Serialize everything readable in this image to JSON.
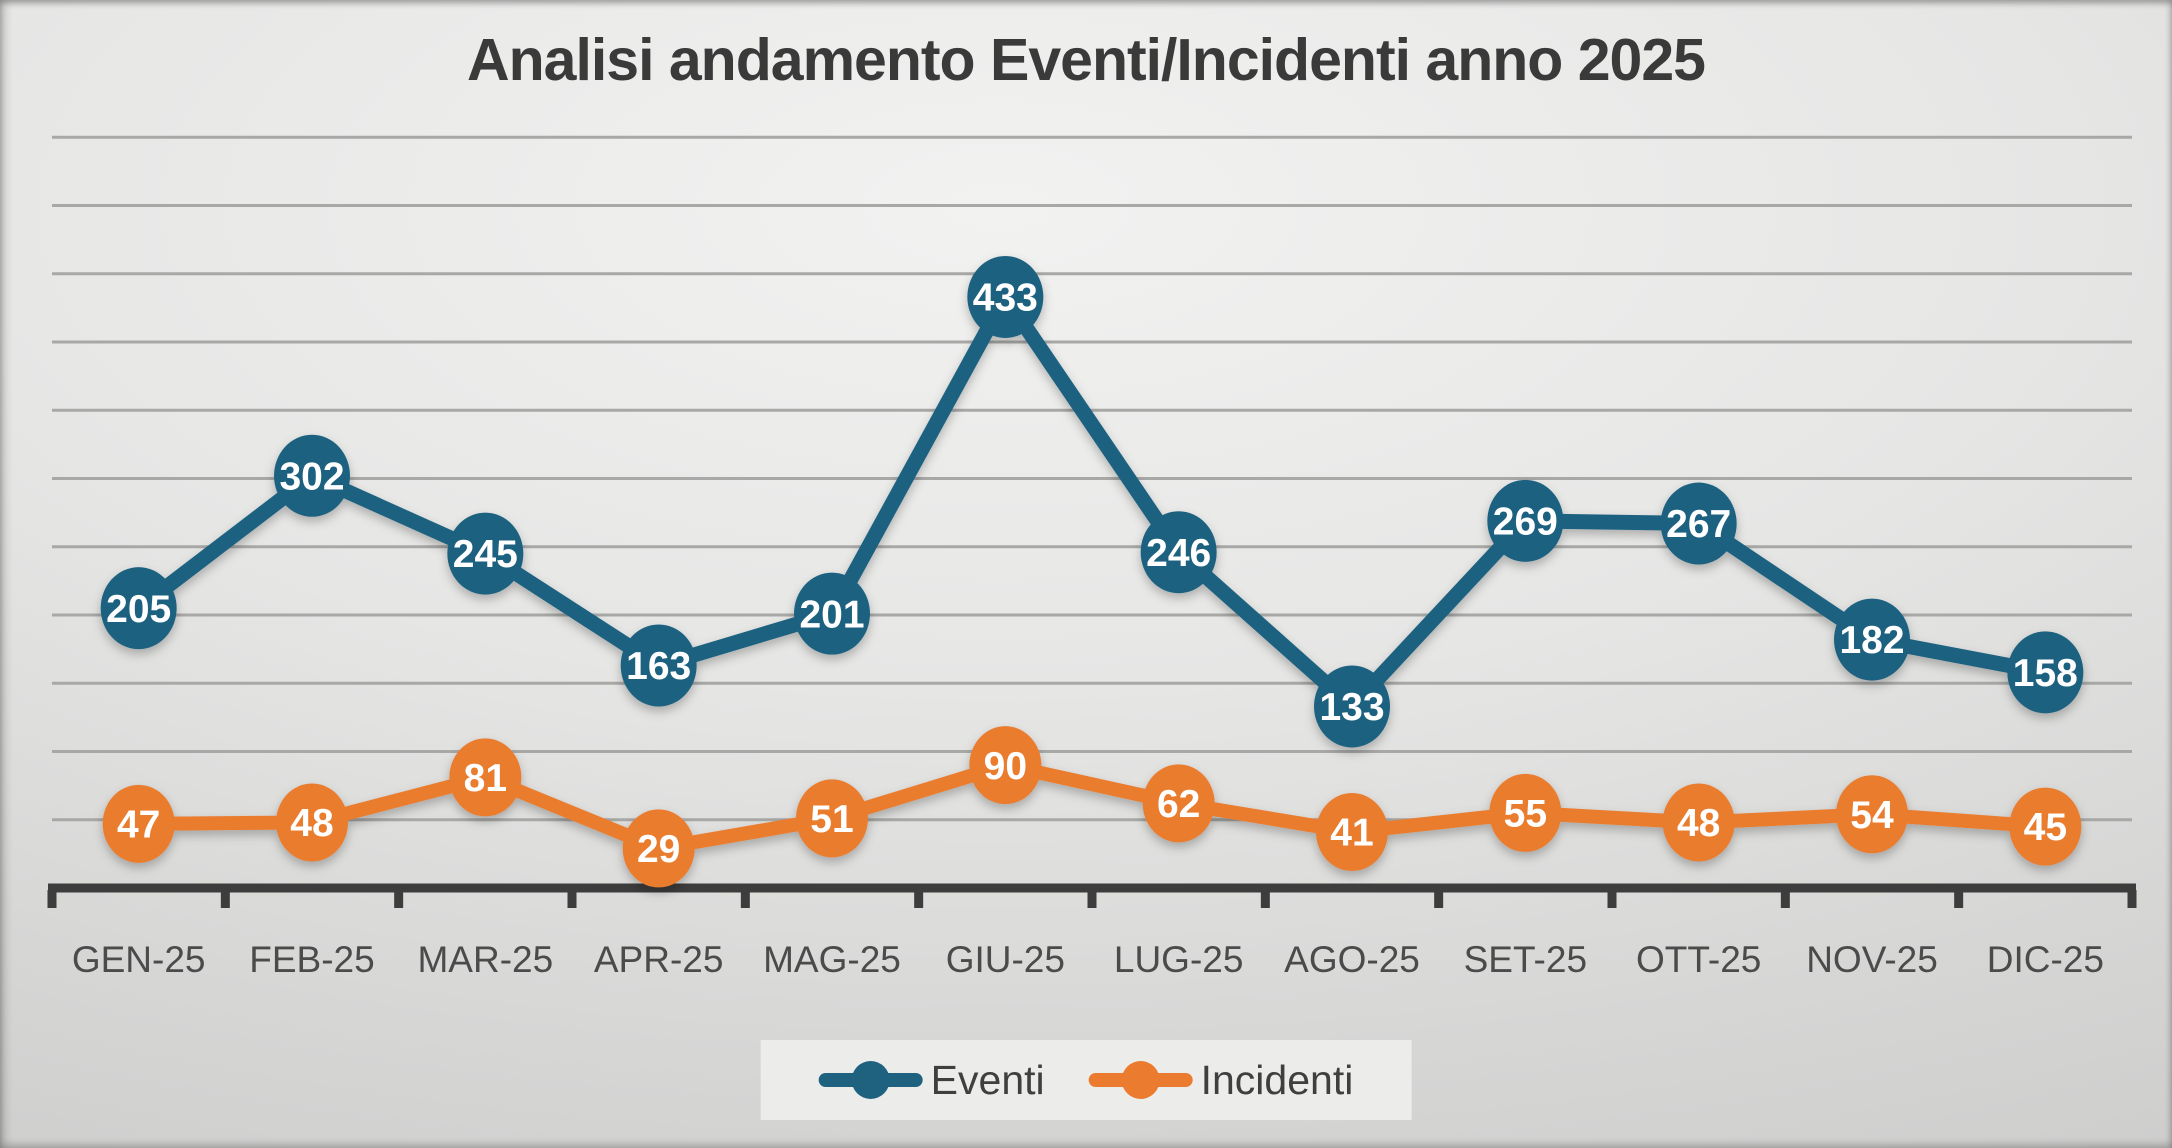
{
  "chart_data": {
    "type": "line",
    "title": "Analisi andamento Eventi/Incidenti anno 2025",
    "categories": [
      "GEN-25",
      "FEB-25",
      "MAR-25",
      "APR-25",
      "MAG-25",
      "GIU-25",
      "LUG-25",
      "AGO-25",
      "SET-25",
      "OTT-25",
      "NOV-25",
      "DIC-25"
    ],
    "series": [
      {
        "name": "Eventi",
        "color": "#1f6280",
        "values": [
          205,
          302,
          245,
          163,
          201,
          433,
          246,
          133,
          269,
          267,
          182,
          158
        ]
      },
      {
        "name": "Incidenti",
        "color": "#ea7b2f",
        "values": [
          47,
          48,
          81,
          29,
          51,
          90,
          62,
          41,
          55,
          48,
          54,
          45
        ]
      }
    ],
    "xlabel": "",
    "ylabel": "",
    "ylim": [
      0,
      550
    ],
    "gridline_step": 50,
    "grid": true,
    "y_axis_labels_visible": false,
    "data_labels": "inside-marker",
    "legend_position": "bottom-center"
  }
}
